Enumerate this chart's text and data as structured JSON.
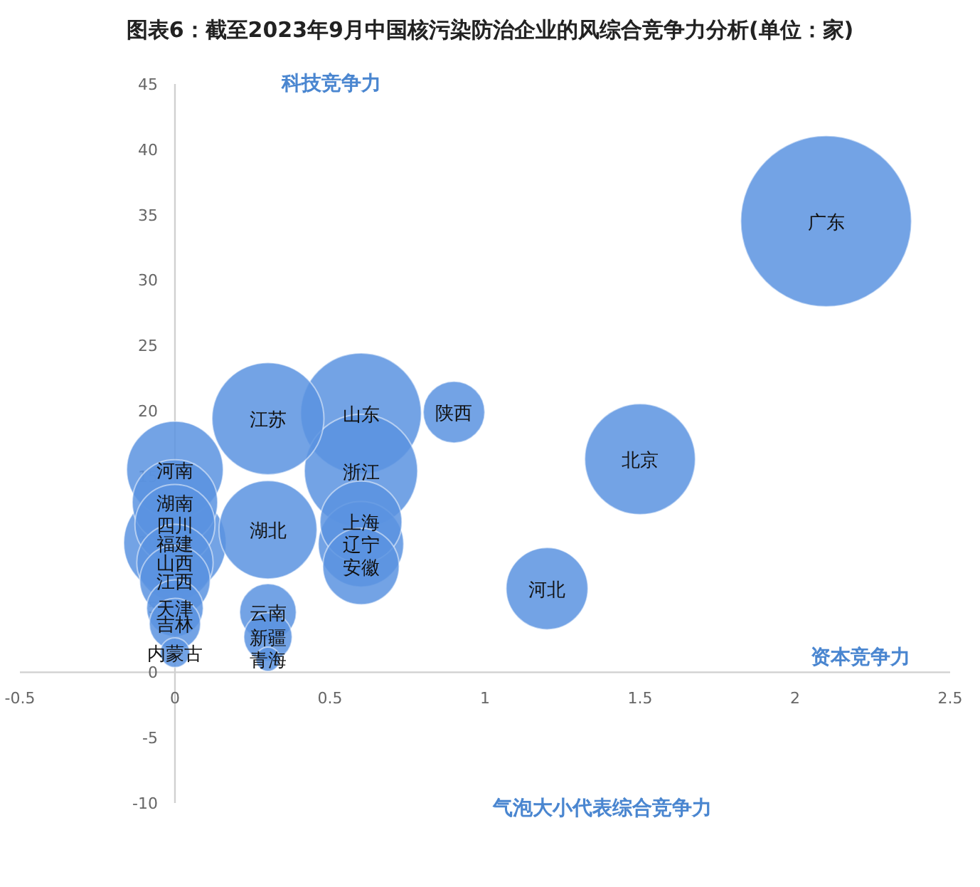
{
  "chart_data": {
    "type": "bubble",
    "title": "图表6：截至2023年9月中国核污染防治企业的风综合竞争力分析(单位：家)",
    "xlabel": "资本竞争力",
    "ylabel": "科技竞争力",
    "annotations": [
      "气泡大小代表综合竞争力",
      {
        "text": "广东",
        "x": 2.1,
        "y": 34.5
      },
      {
        "text": "北京",
        "x": 1.5,
        "y": 16.3
      },
      {
        "text": "河北",
        "x": 1.2,
        "y": 6.4
      },
      {
        "text": "陕西",
        "x": 0.9,
        "y": 19.9
      },
      {
        "text": "山东",
        "x": 0.6,
        "y": 19.8
      },
      {
        "text": "江苏",
        "x": 0.3,
        "y": 19.4
      },
      {
        "text": "浙江",
        "x": 0.6,
        "y": 15.4
      },
      {
        "text": "湖北",
        "x": 0.3,
        "y": 10.9
      },
      {
        "text": "上海",
        "x": 0.6,
        "y": 11.5
      },
      {
        "text": "辽宁",
        "x": 0.6,
        "y": 9.8
      },
      {
        "text": "安徽",
        "x": 0.6,
        "y": 8.1
      },
      {
        "text": "河南",
        "x": 0,
        "y": 15.5
      },
      {
        "text": "湖南",
        "x": 0,
        "y": 13.0
      },
      {
        "text": "四川",
        "x": 0,
        "y": 11.3
      },
      {
        "text": "福建",
        "x": 0,
        "y": 9.9
      },
      {
        "text": "山西",
        "x": 0,
        "y": 8.4
      },
      {
        "text": "江西",
        "x": 0,
        "y": 7.0
      },
      {
        "text": "天津",
        "x": 0,
        "y": 4.9
      },
      {
        "text": "吉林",
        "x": 0,
        "y": 3.7
      },
      {
        "text": "内蒙古",
        "x": 0,
        "y": 1.5
      },
      {
        "text": "云南",
        "x": 0.3,
        "y": 4.6
      },
      {
        "text": "新疆",
        "x": 0.3,
        "y": 2.7
      },
      {
        "text": "青海",
        "x": 0.3,
        "y": 1.0
      }
    ],
    "series": [
      {
        "color": "#5b93e0",
        "x": [
          2.1,
          1.5,
          1.2,
          0.9,
          0.6,
          0.3,
          0.6,
          0.3,
          0.6,
          0.6,
          0.6,
          0,
          0,
          0,
          0,
          0,
          0,
          0,
          0,
          0,
          0.3,
          0.3,
          0.3
        ],
        "values": [
          34.5,
          16.3,
          6.4,
          19.9,
          19.8,
          19.4,
          15.4,
          10.9,
          11.5,
          9.8,
          8.1,
          15.5,
          13.0,
          11.3,
          9.9,
          8.4,
          7.0,
          4.9,
          3.7,
          1.5,
          4.6,
          2.7,
          1.0
        ],
        "sizes": [
          1,
          0.42,
          0.23,
          0.13,
          0.5,
          0.43,
          0.44,
          0.33,
          0.23,
          0.25,
          0.2,
          0.32,
          0.25,
          0.22,
          0.36,
          0.2,
          0.17,
          0.11,
          0.09,
          0.03,
          0.11,
          0.08,
          0.02
        ]
      }
    ],
    "xlim": [
      -0.5,
      2.5
    ],
    "xticks": [
      -0.5,
      0,
      0.5,
      1,
      1.5,
      2,
      2.5
    ],
    "ylim": [
      -10,
      45
    ],
    "yticks": [
      -10,
      -5,
      0,
      5,
      10,
      15,
      20,
      25,
      30,
      35,
      40,
      45
    ],
    "grid": false
  }
}
